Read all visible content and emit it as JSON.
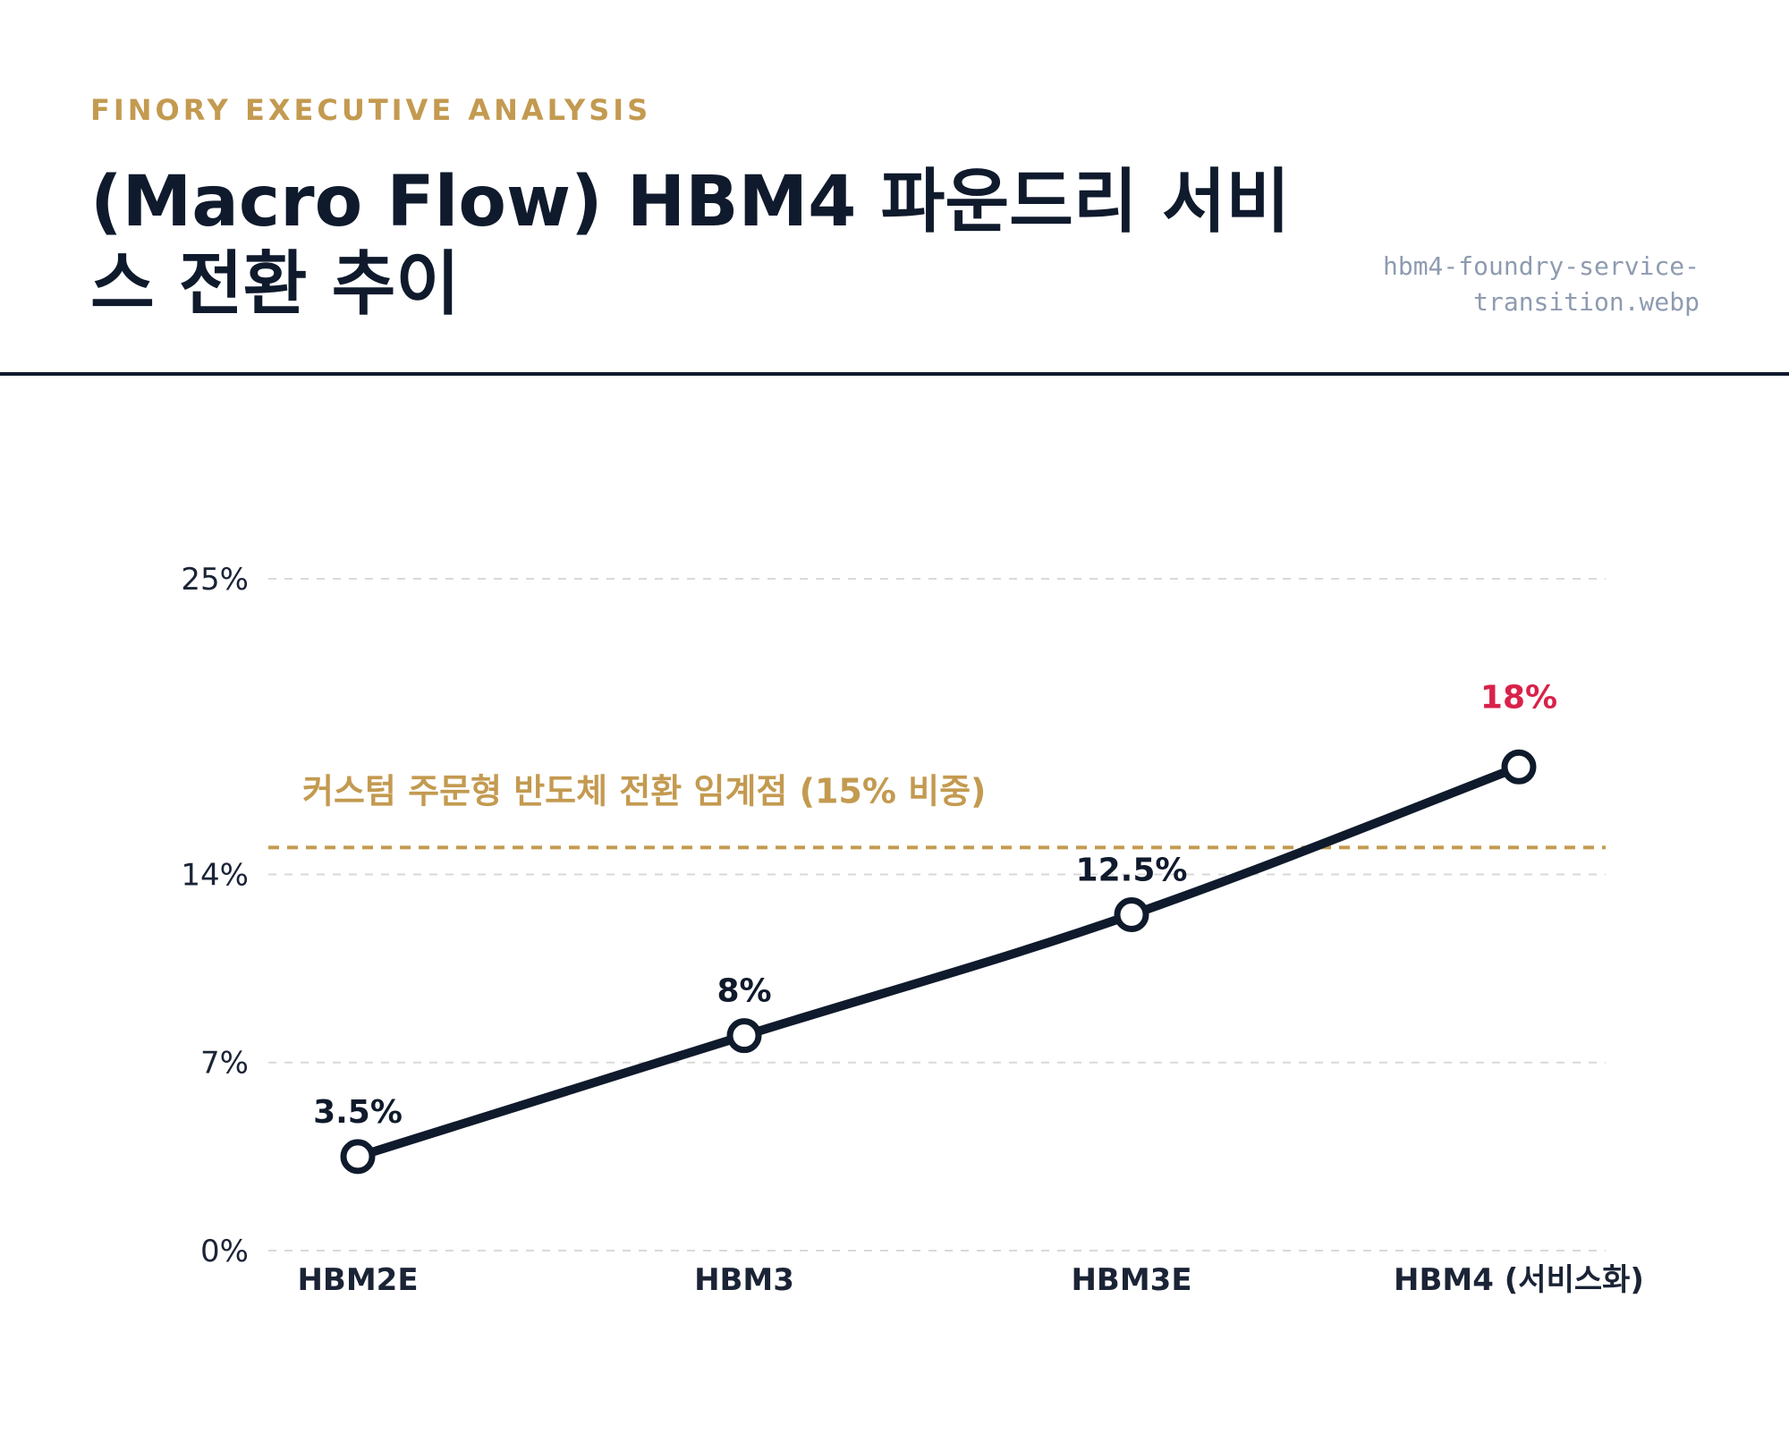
{
  "header": {
    "brand": "FINORY EXECUTIVE ANALYSIS",
    "title": "(Macro Flow) HBM4 파운드리 서비스 전환 추이",
    "filename": "hbm4-foundry-service-transition.webp"
  },
  "colors": {
    "brand": "#c39a50",
    "line": "#0f1a2c",
    "highlight": "#d9224a",
    "grid": "#d9d9d9",
    "threshold": "#c39a50"
  },
  "chart_data": {
    "type": "line",
    "categories": [
      "HBM2E",
      "HBM3",
      "HBM3E",
      "HBM4 (서비스화)"
    ],
    "series": [
      {
        "values": [
          3.5,
          8,
          12.5,
          18
        ]
      }
    ],
    "data_labels": [
      "3.5%",
      "8%",
      "12.5%",
      "18%"
    ],
    "highlight_index": 3,
    "y_ticks": [
      {
        "value": 0,
        "label": "0%"
      },
      {
        "value": 7,
        "label": "7%"
      },
      {
        "value": 14,
        "label": "14%"
      },
      {
        "value": 25,
        "label": "25%"
      }
    ],
    "ylim": [
      0,
      25
    ],
    "grid": true,
    "reference_line": {
      "value": 15,
      "label": "커스텀 주문형 반도체 전환 임계점 (15% 비중)"
    },
    "title": "",
    "xlabel": "",
    "ylabel": ""
  }
}
